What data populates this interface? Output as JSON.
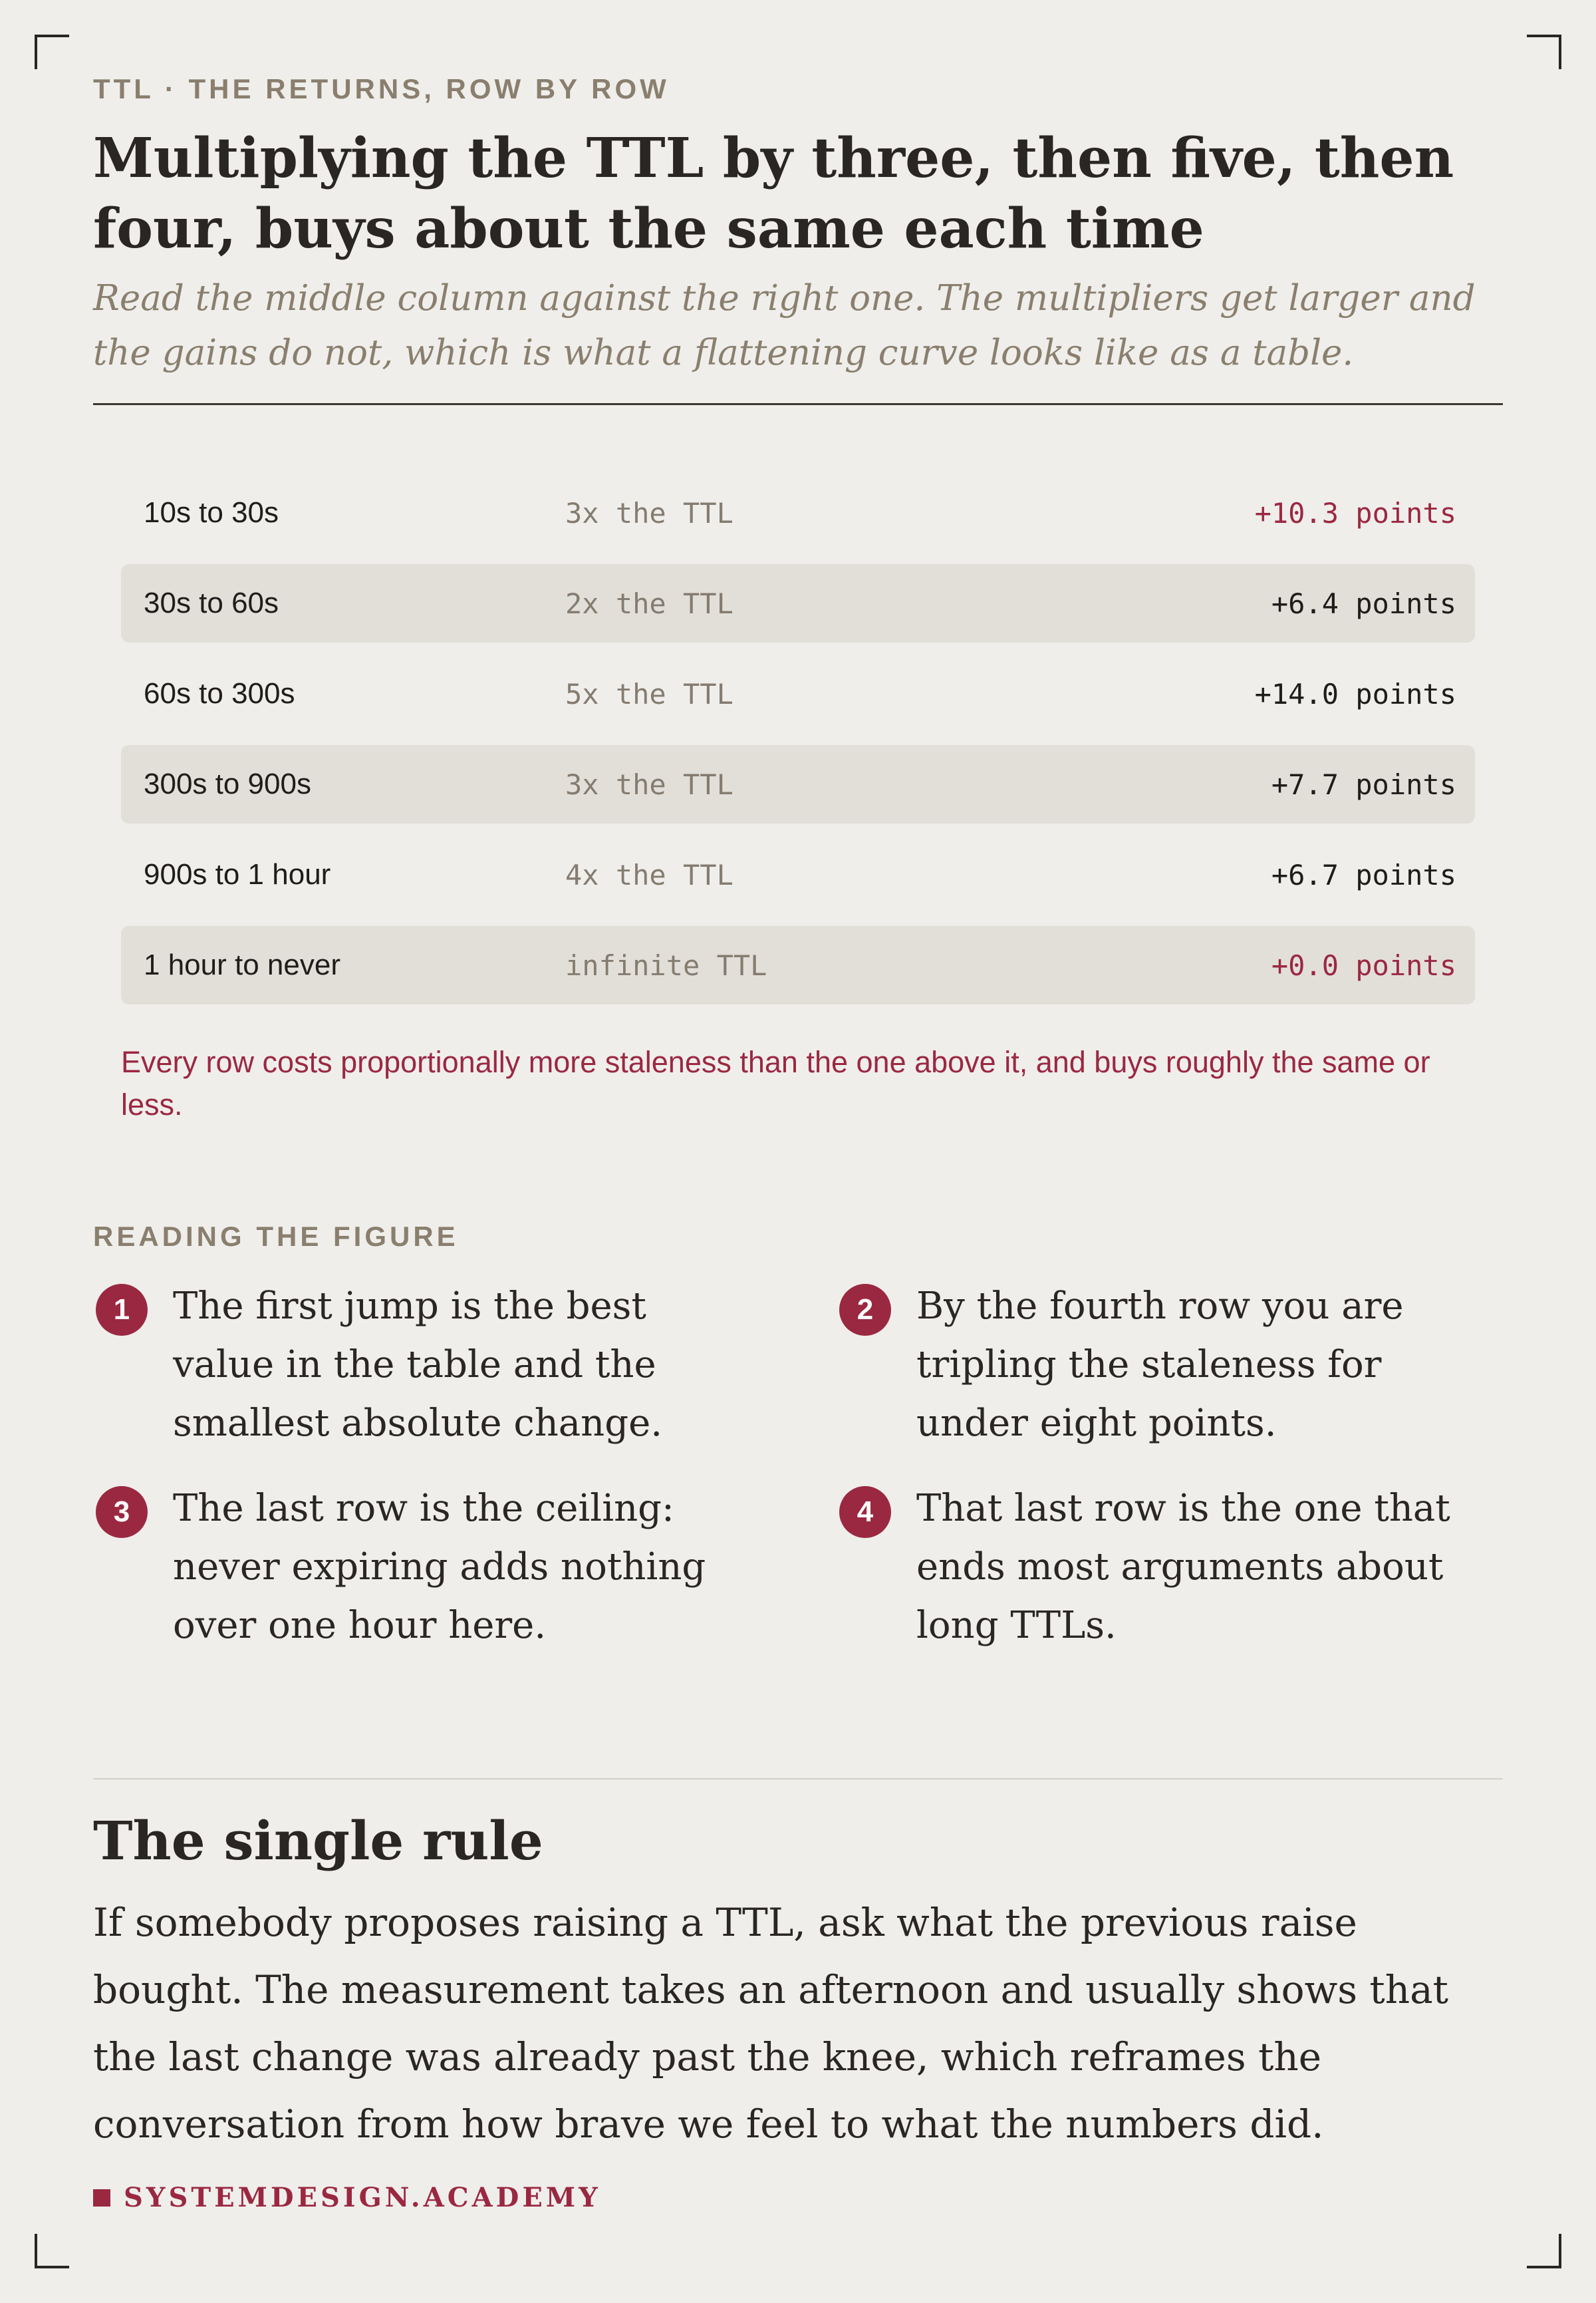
{
  "header": {
    "eyebrow": "TTL · THE RETURNS, ROW BY ROW",
    "title": "Multiplying the TTL by three, then five, then four, buys about the same each time",
    "subtitle": "Read the middle column against the right one. The multipliers get larger and the gains do not, which is what a flattening curve looks like as a table."
  },
  "table": {
    "rows": [
      {
        "range": "10s to 30s",
        "multiplier": "3x the TTL",
        "gain": "+10.3 points"
      },
      {
        "range": "30s to 60s",
        "multiplier": "2x the TTL",
        "gain": "+6.4 points"
      },
      {
        "range": "60s to 300s",
        "multiplier": "5x the TTL",
        "gain": "+14.0 points"
      },
      {
        "range": "300s to 900s",
        "multiplier": "3x the TTL",
        "gain": "+7.7 points"
      },
      {
        "range": "900s to 1 hour",
        "multiplier": "4x the TTL",
        "gain": "+6.7 points"
      },
      {
        "range": "1 hour to never",
        "multiplier": "infinite TTL",
        "gain": "+0.0 points"
      }
    ],
    "note": "Every row costs proportionally more staleness than the one above it, and buys roughly the same or less."
  },
  "reading": {
    "label": "READING THE FIGURE",
    "points": [
      {
        "number": "1",
        "text": "The first jump is the best value in the table and the smallest absolute change."
      },
      {
        "number": "2",
        "text": "By the fourth row you are tripling the staleness for under eight points."
      },
      {
        "number": "3",
        "text": "The last row is the ceiling: never expiring adds nothing over one hour here."
      },
      {
        "number": "4",
        "text": "That last row is the one that ends most arguments about long TTLs."
      }
    ]
  },
  "rule": {
    "heading": "The single rule",
    "body": "If somebody proposes raising a TTL, ask what the previous raise bought. The measurement takes an afternoon and usually shows that the last change was already past the knee, which reframes the conversation from how brave we feel to what the numbers did."
  },
  "footer": {
    "brand": "SYSTEMDESIGN.ACADEMY"
  },
  "colors": {
    "background": "#efeeeb",
    "accent": "#9b2841",
    "muted": "#8a7f6e",
    "row_shade": "#e2dfd9"
  }
}
